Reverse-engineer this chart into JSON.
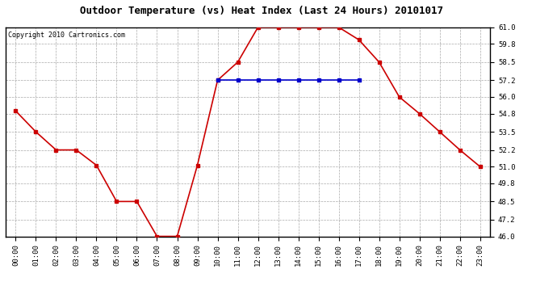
{
  "title": "Outdoor Temperature (vs) Heat Index (Last 24 Hours) 20101017",
  "copyright": "Copyright 2010 Cartronics.com",
  "x_labels": [
    "00:00",
    "01:00",
    "02:00",
    "03:00",
    "04:00",
    "05:00",
    "06:00",
    "07:00",
    "08:00",
    "09:00",
    "10:00",
    "11:00",
    "12:00",
    "13:00",
    "14:00",
    "15:00",
    "16:00",
    "17:00",
    "18:00",
    "19:00",
    "20:00",
    "21:00",
    "22:00",
    "23:00"
  ],
  "temp_values": [
    55.0,
    53.5,
    52.2,
    52.2,
    51.1,
    48.5,
    48.5,
    46.0,
    46.0,
    51.1,
    57.2,
    58.5,
    61.0,
    61.0,
    61.0,
    61.0,
    61.0,
    60.1,
    58.5,
    56.0,
    54.8,
    53.5,
    52.2,
    51.0
  ],
  "heat_values": [
    null,
    null,
    null,
    null,
    null,
    null,
    null,
    null,
    null,
    null,
    57.2,
    57.2,
    57.2,
    57.2,
    57.2,
    57.2,
    57.2,
    57.2,
    null,
    null,
    null,
    null,
    null,
    null
  ],
  "ylim": [
    46.0,
    61.0
  ],
  "yticks": [
    46.0,
    47.2,
    48.5,
    49.8,
    51.0,
    52.2,
    53.5,
    54.8,
    56.0,
    57.2,
    58.5,
    59.8,
    61.0
  ],
  "temp_color": "#cc0000",
  "heat_color": "#0000cc",
  "grid_color": "#aaaaaa",
  "bg_color": "#ffffff",
  "title_fontsize": 9,
  "copyright_fontsize": 6,
  "tick_fontsize": 6.5,
  "marker": "s",
  "marker_size": 3,
  "line_width": 1.2
}
